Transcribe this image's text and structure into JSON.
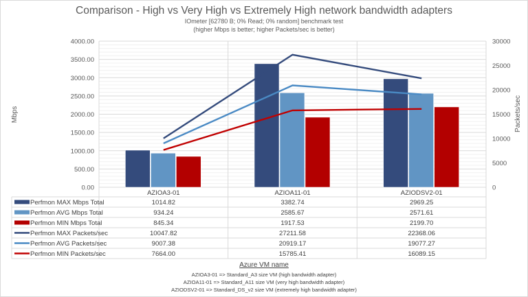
{
  "chart_data": {
    "type": "bar",
    "title": "Comparison - High vs Very High vs Extremely High network bandwidth adapters",
    "subtitle": [
      "IOmeter [62780 B; 0% Read; 0% random] benchmark test",
      "(higher Mbps is better; higher Packets/sec is better)"
    ],
    "xlabel": "Azure VM name",
    "ylabel": "Mbps",
    "y2label": "Packets/sec",
    "ylim": [
      0,
      4000
    ],
    "y2lim": [
      0,
      30000
    ],
    "yticks": [
      "0.00",
      "500.00",
      "1000.00",
      "1500.00",
      "2000.00",
      "2500.00",
      "3000.00",
      "3500.00",
      "4000.00"
    ],
    "y2ticks": [
      "0",
      "5000",
      "10000",
      "15000",
      "20000",
      "25000",
      "30000"
    ],
    "grid": true,
    "legend": "data-table",
    "categories": [
      "AZIOA3-01",
      "AZIOA11-01",
      "AZIODSV2-01"
    ],
    "series": [
      {
        "name": "Perfmon MAX Mbps Total",
        "kind": "bar",
        "axis": "left",
        "color": "#344B7C",
        "values": [
          1014.82,
          3382.74,
          2969.25
        ],
        "labels": [
          "1014.82",
          "3382.74",
          "2969.25"
        ]
      },
      {
        "name": "Perfmon AVG Mbps Total",
        "kind": "bar",
        "axis": "left",
        "color": "#6195C4",
        "values": [
          934.24,
          2585.67,
          2571.61
        ],
        "labels": [
          "934.24",
          "2585.67",
          "2571.61"
        ]
      },
      {
        "name": "Perfmon MIN Mbps Total",
        "kind": "bar",
        "axis": "left",
        "color": "#B30000",
        "values": [
          845.34,
          1917.53,
          2199.7
        ],
        "labels": [
          "845.34",
          "1917.53",
          "2199.70"
        ]
      },
      {
        "name": "Perfmon MAX Packets/sec",
        "kind": "line",
        "axis": "right",
        "color": "#344B7C",
        "values": [
          10047.82,
          27211.58,
          22368.06
        ],
        "labels": [
          "10047.82",
          "27211.58",
          "22368.06"
        ]
      },
      {
        "name": "Perfmon AVG Packets/sec",
        "kind": "line",
        "axis": "right",
        "color": "#4A8AC4",
        "values": [
          9007.38,
          20919.17,
          19077.27
        ],
        "labels": [
          "9007.38",
          "20919.17",
          "19077.27"
        ]
      },
      {
        "name": "Perfmon MIN Packets/sec",
        "kind": "line",
        "axis": "right",
        "color": "#C00000",
        "values": [
          7664.0,
          15785.41,
          16089.15
        ],
        "labels": [
          "7664.00",
          "15785.41",
          "16089.15"
        ]
      }
    ]
  },
  "notes": {
    "title": "Azure VM name",
    "lines": [
      "AZIOA3-01 => Standard_A3 size VM (high bandwidth adapter)",
      "AZIOA11-01 => Standard_A11 size VM (very high bandwidth adapter)",
      "AZIODSV2-01 => Standard_DS_v2 size VM (extremely high bandwidth adapter)"
    ]
  }
}
